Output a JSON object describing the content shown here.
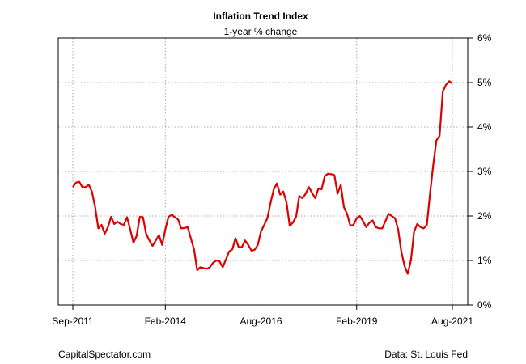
{
  "chart_data": {
    "type": "line",
    "title": "Inflation Trend Index",
    "subtitle": "1-year % change",
    "xlabel": "",
    "ylabel": "",
    "x_tick_labels": [
      "Sep-2011",
      "Feb-2014",
      "Aug-2016",
      "Feb-2019",
      "Aug-2021"
    ],
    "y_tick_labels": [
      "0%",
      "1%",
      "2%",
      "3%",
      "4%",
      "5%",
      "6%"
    ],
    "ylim": [
      0,
      6
    ],
    "grid": true,
    "line_color": "#dd0000",
    "series": [
      {
        "x": [
          "2011-09",
          "2011-10",
          "2011-11",
          "2011-12",
          "2012-01",
          "2012-02",
          "2012-03",
          "2012-04",
          "2012-05",
          "2012-06",
          "2012-07",
          "2012-08",
          "2012-09",
          "2012-10",
          "2012-11",
          "2012-12",
          "2013-01",
          "2013-02",
          "2013-03",
          "2013-04",
          "2013-05",
          "2013-06",
          "2013-07",
          "2013-08",
          "2013-09",
          "2013-10",
          "2013-11",
          "2013-12",
          "2014-01",
          "2014-02",
          "2014-03",
          "2014-04",
          "2014-05",
          "2014-06",
          "2014-07",
          "2014-08",
          "2014-09",
          "2014-10",
          "2014-11",
          "2014-12",
          "2015-01",
          "2015-02",
          "2015-03",
          "2015-04",
          "2015-05",
          "2015-06",
          "2015-07",
          "2015-08",
          "2015-09",
          "2015-10",
          "2015-11",
          "2015-12",
          "2016-01",
          "2016-02",
          "2016-03",
          "2016-04",
          "2016-05",
          "2016-06",
          "2016-07",
          "2016-08",
          "2016-09",
          "2016-10",
          "2016-11",
          "2016-12",
          "2017-01",
          "2017-02",
          "2017-03",
          "2017-04",
          "2017-05",
          "2017-06",
          "2017-07",
          "2017-08",
          "2017-09",
          "2017-10",
          "2017-11",
          "2017-12",
          "2018-01",
          "2018-02",
          "2018-03",
          "2018-04",
          "2018-05",
          "2018-06",
          "2018-07",
          "2018-08",
          "2018-09",
          "2018-10",
          "2018-11",
          "2018-12",
          "2019-01",
          "2019-02",
          "2019-03",
          "2019-04",
          "2019-05",
          "2019-06",
          "2019-07",
          "2019-08",
          "2019-09",
          "2019-10",
          "2019-11",
          "2019-12",
          "2020-01",
          "2020-02",
          "2020-03",
          "2020-04",
          "2020-05",
          "2020-06",
          "2020-07",
          "2020-08",
          "2020-09",
          "2020-10",
          "2020-11",
          "2020-12",
          "2021-01",
          "2021-02",
          "2021-03",
          "2021-04",
          "2021-05",
          "2021-06",
          "2021-07",
          "2021-08"
        ],
        "values": [
          2.65,
          2.75,
          2.77,
          2.65,
          2.65,
          2.7,
          2.55,
          2.2,
          1.72,
          1.8,
          1.6,
          1.75,
          1.98,
          1.82,
          1.87,
          1.82,
          1.8,
          1.97,
          1.7,
          1.4,
          1.55,
          1.98,
          1.97,
          1.6,
          1.45,
          1.33,
          1.45,
          1.57,
          1.35,
          1.7,
          1.98,
          2.03,
          1.97,
          1.92,
          1.72,
          1.73,
          1.75,
          1.5,
          1.25,
          0.78,
          0.85,
          0.83,
          0.81,
          0.85,
          0.95,
          1.0,
          0.98,
          0.85,
          1.02,
          1.2,
          1.25,
          1.5,
          1.3,
          1.3,
          1.45,
          1.35,
          1.22,
          1.24,
          1.35,
          1.65,
          1.8,
          1.95,
          2.3,
          2.6,
          2.73,
          2.48,
          2.55,
          2.3,
          1.78,
          1.85,
          1.98,
          2.45,
          2.4,
          2.5,
          2.65,
          2.52,
          2.4,
          2.62,
          2.6,
          2.9,
          2.95,
          2.94,
          2.92,
          2.5,
          2.7,
          2.2,
          2.05,
          1.78,
          1.8,
          1.95,
          2.0,
          1.88,
          1.75,
          1.85,
          1.9,
          1.75,
          1.72,
          1.72,
          1.88,
          2.05,
          2.0,
          1.95,
          1.7,
          1.2,
          0.88,
          0.7,
          1.0,
          1.65,
          1.82,
          1.75,
          1.72,
          1.8,
          2.5,
          3.15,
          3.7,
          3.8,
          4.8,
          4.95,
          5.03,
          4.98
        ]
      }
    ]
  },
  "footer": {
    "left": "CapitalSpectator.com",
    "right": "Data: St. Louis Fed"
  }
}
